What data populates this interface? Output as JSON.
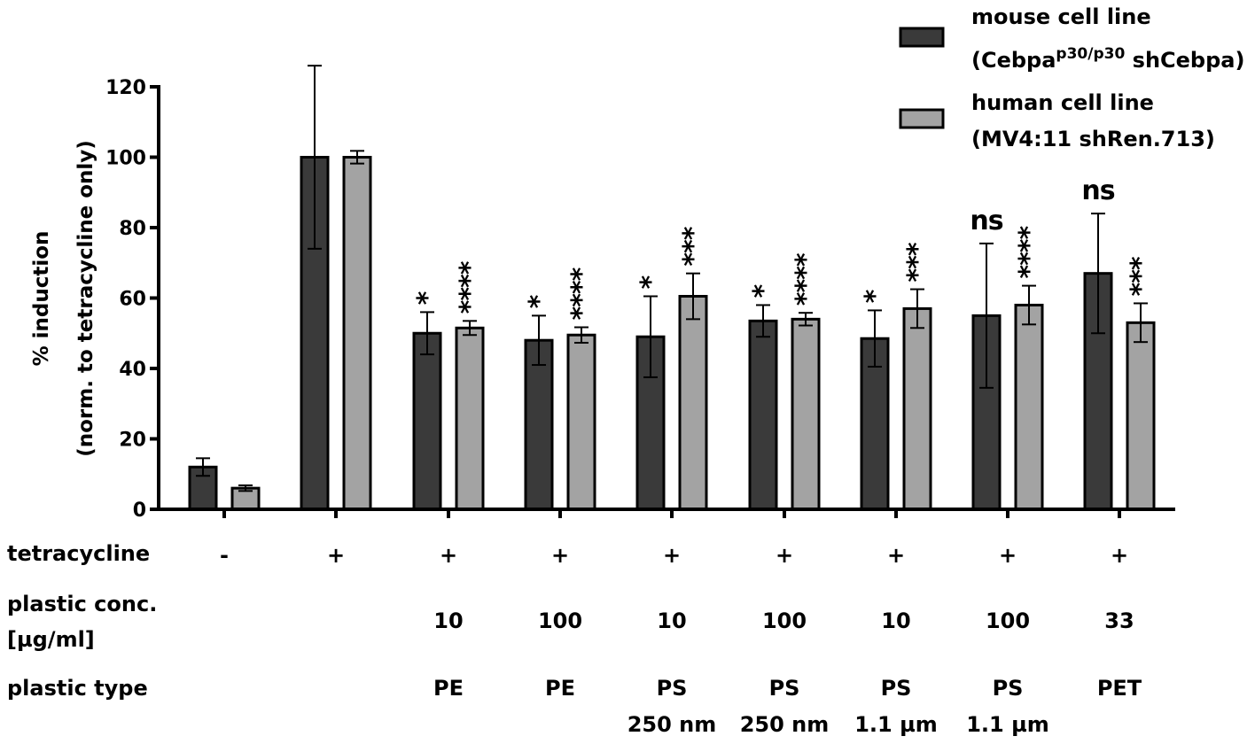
{
  "chart_data": {
    "type": "bar",
    "title": "",
    "ylabel": [
      "% induction",
      "(norm. to tetracycline only)"
    ],
    "ylim": [
      0,
      120
    ],
    "yticks": [
      0,
      20,
      40,
      60,
      80,
      100,
      120
    ],
    "series": [
      {
        "name": "mouse cell line",
        "name_line2_prefix": "(Cebpa",
        "name_line2_sup": "p30/p30",
        "name_line2_suffix": " shCebpa)",
        "color": "#3a3a3a",
        "values": [
          12,
          100,
          50,
          48,
          49,
          53.5,
          48.5,
          55,
          67
        ],
        "errors": [
          2.5,
          26,
          6,
          7,
          11.5,
          4.5,
          8,
          20.5,
          17
        ],
        "sig": [
          "",
          "",
          "*",
          "*",
          "*",
          "*",
          "*",
          "ns",
          "ns"
        ]
      },
      {
        "name": "human cell line",
        "name_line2": "(MV4:11 shRen.713)",
        "color": "#a3a3a3",
        "values": [
          6,
          100,
          51.5,
          49.5,
          60.5,
          54,
          57,
          58,
          53
        ],
        "errors": [
          0.8,
          1.8,
          2,
          2.2,
          6.5,
          1.8,
          5.5,
          5.5,
          5.5
        ],
        "sig": [
          "",
          "",
          "****",
          "****",
          "***",
          "****",
          "***",
          "****",
          "***"
        ]
      }
    ],
    "table": {
      "rows": [
        {
          "label": [
            "tetracycline"
          ],
          "cells": [
            "-",
            "+",
            "+",
            "+",
            "+",
            "+",
            "+",
            "+",
            "+"
          ]
        },
        {
          "label": [
            "plastic conc.",
            "[µg/ml]"
          ],
          "cells": [
            "",
            "",
            "10",
            "100",
            "10",
            "100",
            "10",
            "100",
            "33"
          ]
        },
        {
          "label": [
            "plastic type"
          ],
          "cells": [
            [
              "",
              ""
            ],
            [
              "",
              ""
            ],
            [
              "PE",
              ""
            ],
            [
              "PE",
              ""
            ],
            [
              "PS",
              "250 nm"
            ],
            [
              "PS",
              "250 nm"
            ],
            [
              "PS",
              "1.1 µm"
            ],
            [
              "PS",
              "1.1 µm"
            ],
            [
              "PET",
              ""
            ]
          ]
        }
      ]
    }
  }
}
